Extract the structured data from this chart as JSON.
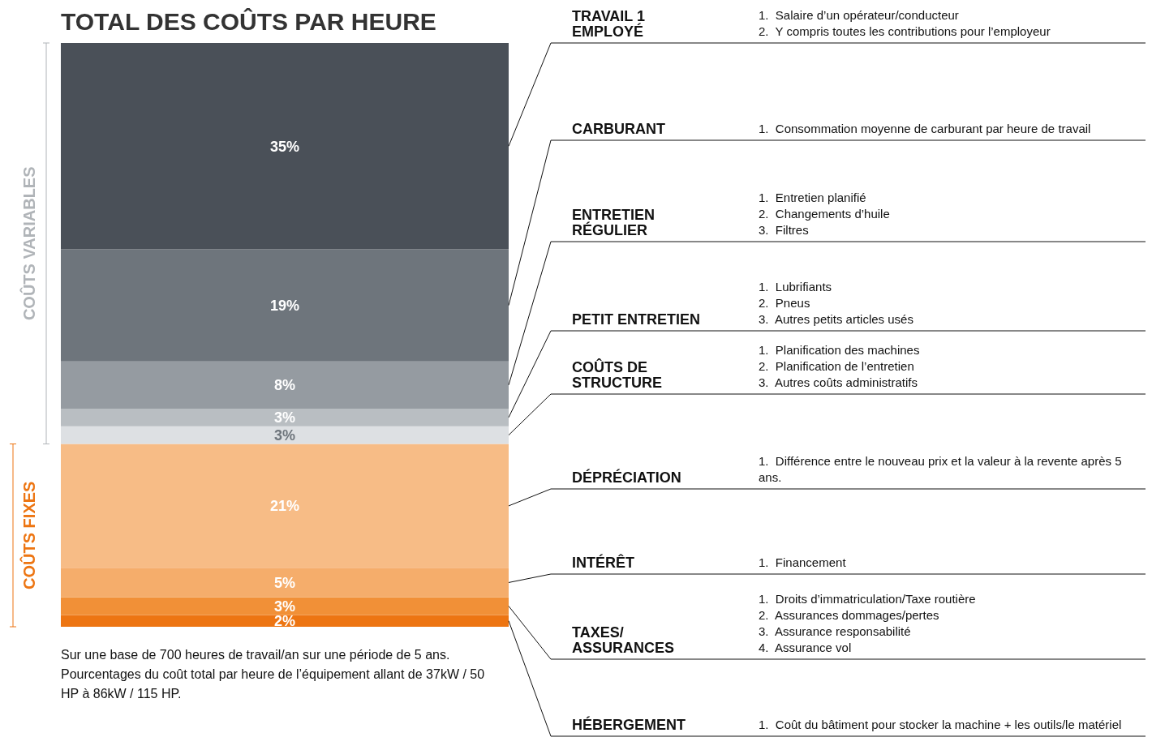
{
  "chart_data": {
    "type": "bar",
    "title": "TOTAL DES COÛTS PAR HEURE",
    "categories": [
      null
    ],
    "stacked": true,
    "series": [
      {
        "name": "HÉBERGEMENT",
        "color": "#ed7512",
        "values": [
          2
        ],
        "value_labels": [
          "2%"
        ]
      },
      {
        "name": "TAXES/\nASSURANCES",
        "color": "#f19037",
        "values": [
          3
        ],
        "value_labels": [
          "3%"
        ]
      },
      {
        "name": "INTÉRÊT",
        "color": "#f5ad6b",
        "values": [
          5
        ],
        "value_labels": [
          "5%"
        ]
      },
      {
        "name": "DÉPRÉCIATION",
        "color": "#f7bc86",
        "values": [
          21
        ],
        "value_labels": [
          "21%"
        ]
      },
      {
        "name": "COÛTS DE\nSTRUCTURE",
        "color": "#dde0e3",
        "values": [
          3
        ],
        "value_labels": [
          "3%"
        ]
      },
      {
        "name": "PETIT ENTRETIEN",
        "color": "#b9bec2",
        "values": [
          3
        ],
        "value_labels": [
          "3%"
        ]
      },
      {
        "name": "ENTRETIEN\nRÉGULIER",
        "color": "#959ba1",
        "values": [
          8
        ],
        "value_labels": [
          "8%"
        ]
      },
      {
        "name": "CARBURANT",
        "color": "#6e757c",
        "values": [
          19
        ],
        "value_labels": [
          "19%"
        ]
      },
      {
        "name": "TRAVAIL 1\nEMPLOYÉ",
        "color": "#4a5058",
        "values": [
          35
        ],
        "value_labels": [
          "35%"
        ]
      }
    ],
    "annotations": [
      "1.  Salaire d’un opérateur/conducteur\n2.  Y compris toutes les contributions pour l’employeur",
      "1.  Consommation moyenne de carburant par heure de travail",
      "1.  Entretien planifié\n2.  Changements d’huile\n3.  Filtres",
      "1.  Lubrifiants\n2.  Pneus\n3.  Autres petits articles usés",
      "1.  Planification des machines\n2.  Planification de l’entretien\n3.  Autres coûts administratifs",
      "1.  Différence entre le nouveau prix et la valeur à la revente après 5 ans.",
      "1.  Financement",
      "1.  Droits d’immatriculation/Taxe routière\n2.  Assurances dommages/pertes\n3.  Assurance responsabilité\n4.  Assurance vol",
      "1.  Coût du bâtiment pour stocker la machine + les outils/le matériel",
      "COÛTS VARIABLES",
      "COÛTS FIXES",
      "Sur une base de 700 heures de travail/an sur une période de 5 ans. Pourcentages du coût total par heure de l’équipement allant de 37kW / 50 HP à 86kW / 115 HP."
    ]
  }
}
